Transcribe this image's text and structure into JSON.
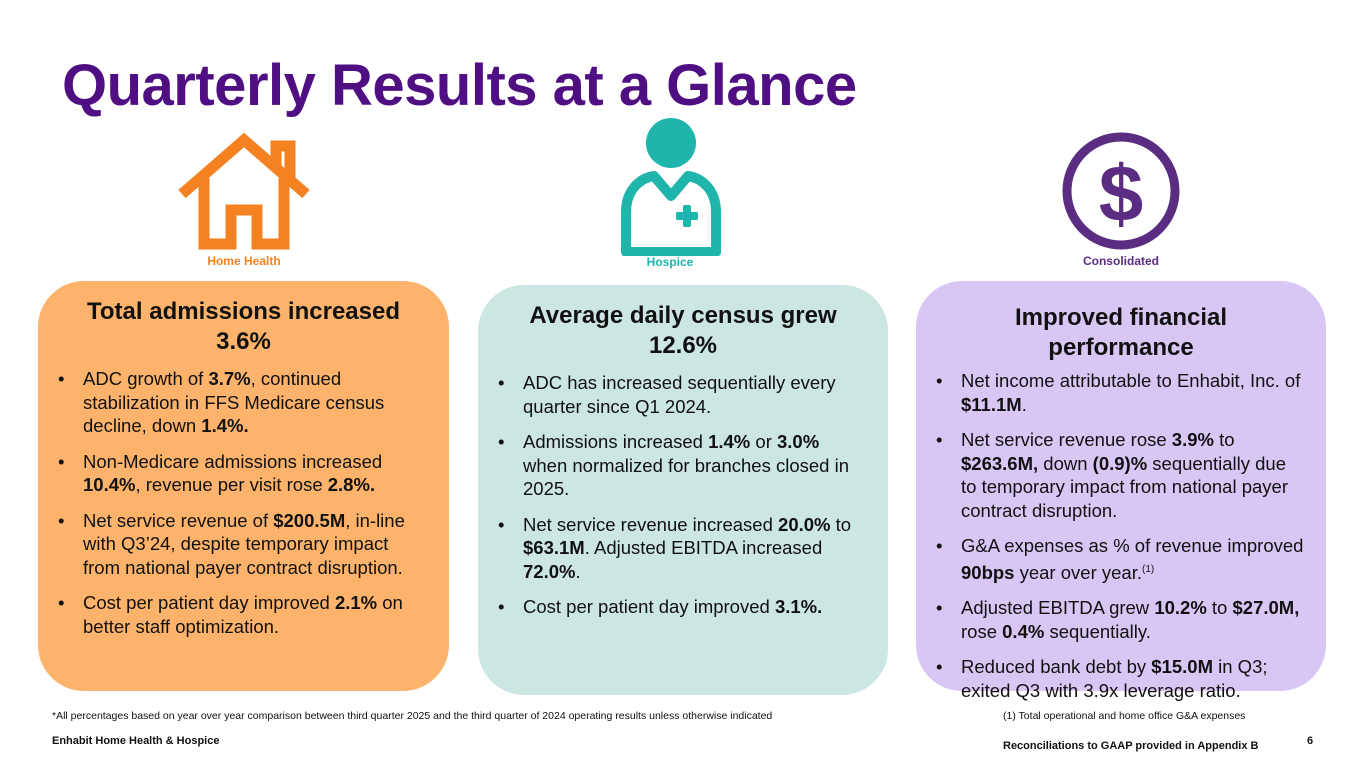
{
  "title": "Quarterly Results at a Glance",
  "colors": {
    "title": "#4f0f82",
    "home_health": "#f58220",
    "hospice": "#1fb5ad",
    "consolidated": "#5a2d82",
    "card_home": "#fdb36b",
    "card_hospice": "#cce6e3",
    "card_consolidated": "#d8c6f5"
  },
  "icons": {
    "home_health": "house-icon",
    "hospice": "caregiver-icon",
    "consolidated": "dollar-icon"
  },
  "sections": {
    "home_health": {
      "label": "Home Health",
      "heading": "Total admissions increased 3.6%",
      "bullets": [
        [
          {
            "t": "ADC growth of "
          },
          {
            "t": "3.7%",
            "b": true
          },
          {
            "t": ", continued stabilization in FFS Medicare census decline, down "
          },
          {
            "t": "1.4%.",
            "b": true
          }
        ],
        [
          {
            "t": "Non-Medicare admissions increased "
          },
          {
            "t": "10.4%",
            "b": true
          },
          {
            "t": ", revenue per visit rose "
          },
          {
            "t": "2.8%.",
            "b": true
          }
        ],
        [
          {
            "t": "Net service revenue of "
          },
          {
            "t": "$200.5M",
            "b": true
          },
          {
            "t": ", in-line with Q3’24, despite temporary impact from national payer contract disruption."
          }
        ],
        [
          {
            "t": "Cost per patient day improved "
          },
          {
            "t": "2.1%",
            "b": true
          },
          {
            "t": " on better staff optimization."
          }
        ]
      ]
    },
    "hospice": {
      "label": "Hospice",
      "heading": "Average daily census grew 12.6%",
      "bullets": [
        [
          {
            "t": "ADC has increased sequentially every quarter since Q1 2024."
          }
        ],
        [
          {
            "t": "Admissions increased "
          },
          {
            "t": "1.4%",
            "b": true
          },
          {
            "t": " or "
          },
          {
            "t": "3.0%",
            "b": true
          },
          {
            "t": " when normalized for branches closed in 2025."
          }
        ],
        [
          {
            "t": "Net service revenue increased "
          },
          {
            "t": "20.0%",
            "b": true
          },
          {
            "t": " to "
          },
          {
            "t": "$63.1M",
            "b": true
          },
          {
            "t": ". Adjusted EBITDA increased "
          },
          {
            "t": "72.0%",
            "b": true
          },
          {
            "t": "."
          }
        ],
        [
          {
            "t": "Cost per patient day improved "
          },
          {
            "t": "3.1%.",
            "b": true
          }
        ]
      ]
    },
    "consolidated": {
      "label": "Consolidated",
      "heading": "Improved financial performance",
      "bullets": [
        [
          {
            "t": "Net income attributable to Enhabit, Inc. of "
          },
          {
            "t": "$11.1M",
            "b": true
          },
          {
            "t": "."
          }
        ],
        [
          {
            "t": "Net service revenue rose "
          },
          {
            "t": "3.9%",
            "b": true
          },
          {
            "t": " to "
          },
          {
            "t": "$263.6M,",
            "b": true
          },
          {
            "t": " down "
          },
          {
            "t": "(0.9)%",
            "b": true
          },
          {
            "t": " sequentially due to temporary impact from national payer contract disruption."
          }
        ],
        [
          {
            "t": "G&A expenses as % of revenue improved "
          },
          {
            "t": "90bps",
            "b": true
          },
          {
            "t": " year over year."
          },
          {
            "t": "(1)",
            "sup": true
          }
        ],
        [
          {
            "t": "Adjusted EBITDA grew "
          },
          {
            "t": "10.2%",
            "b": true
          },
          {
            "t": " to "
          },
          {
            "t": "$27.0M,",
            "b": true
          },
          {
            "t": " rose "
          },
          {
            "t": "0.4%",
            "b": true
          },
          {
            "t": " sequentially."
          }
        ],
        [
          {
            "t": "Reduced bank debt by "
          },
          {
            "t": "$15.0M",
            "b": true
          },
          {
            "t": " in Q3; exited Q3 with 3.9x leverage ratio."
          }
        ]
      ]
    }
  },
  "footnotes": {
    "left": "*All percentages based on year over year comparison between third quarter 2025 and the third quarter of 2024 operating results unless otherwise indicated",
    "right": "(1) Total operational and home office G&A expenses"
  },
  "footer": {
    "company": "Enhabit Home Health & Hospice",
    "reconciliation": "Reconciliations to GAAP provided in Appendix B",
    "page_number": "6"
  }
}
